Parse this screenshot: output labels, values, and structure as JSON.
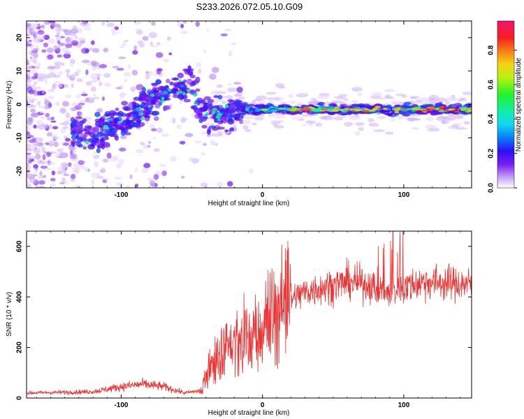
{
  "title": "S233.2026.072.05.10.G09",
  "chart_data": [
    {
      "type": "heatmap",
      "name": "spectrogram",
      "xlabel": "Height of straight line (km)",
      "ylabel": "Frequency (Hz)",
      "xlim": [
        -167,
        148
      ],
      "ylim": [
        -25,
        25
      ],
      "xticks": [
        -100,
        0,
        100
      ],
      "yticks": [
        -20,
        -10,
        0,
        10,
        20
      ],
      "colorbar": {
        "label": "Normalized spectral amplitude",
        "range": [
          0.0,
          0.97
        ],
        "ticks": [
          0.0,
          0.2,
          0.4,
          0.6,
          0.8
        ]
      },
      "ridge": [
        {
          "h": -130,
          "f": -8
        },
        {
          "h": -120,
          "f": -10
        },
        {
          "h": -110,
          "f": -7
        },
        {
          "h": -100,
          "f": -5
        },
        {
          "h": -90,
          "f": -2
        },
        {
          "h": -80,
          "f": 1
        },
        {
          "h": -70,
          "f": 4
        },
        {
          "h": -60,
          "f": 5
        },
        {
          "h": -50,
          "f": 6
        },
        {
          "h": -45,
          "f": -2
        },
        {
          "h": -35,
          "f": -3
        },
        {
          "h": -25,
          "f": -2
        },
        {
          "h": -15,
          "f": -1.5
        },
        {
          "h": 0,
          "f": -1.5
        },
        {
          "h": 148,
          "f": -1.5
        }
      ]
    },
    {
      "type": "line",
      "name": "snr",
      "xlabel": "Height of straight line (km)",
      "ylabel": "SNR (10 * v/v)",
      "xlim": [
        -167,
        148
      ],
      "ylim": [
        0,
        660
      ],
      "xticks": [
        -100,
        0,
        100
      ],
      "yticks": [
        0,
        200,
        400,
        600
      ],
      "envelope": [
        {
          "h": -167,
          "snr": 20
        },
        {
          "h": -120,
          "snr": 25
        },
        {
          "h": -100,
          "snr": 45
        },
        {
          "h": -85,
          "snr": 55
        },
        {
          "h": -70,
          "snr": 45
        },
        {
          "h": -55,
          "snr": 20
        },
        {
          "h": -43,
          "snr": 30
        },
        {
          "h": -38,
          "snr": 120
        },
        {
          "h": -30,
          "snr": 190
        },
        {
          "h": -20,
          "snr": 210
        },
        {
          "h": -10,
          "snr": 230
        },
        {
          "h": 0,
          "snr": 260
        },
        {
          "h": 10,
          "snr": 340
        },
        {
          "h": 20,
          "snr": 390
        },
        {
          "h": 30,
          "snr": 420
        },
        {
          "h": 45,
          "snr": 440
        },
        {
          "h": 60,
          "snr": 460
        },
        {
          "h": 75,
          "snr": 450
        },
        {
          "h": 90,
          "snr": 410
        },
        {
          "h": 100,
          "snr": 440
        },
        {
          "h": 115,
          "snr": 460
        },
        {
          "h": 130,
          "snr": 455
        },
        {
          "h": 148,
          "snr": 450
        }
      ]
    }
  ]
}
